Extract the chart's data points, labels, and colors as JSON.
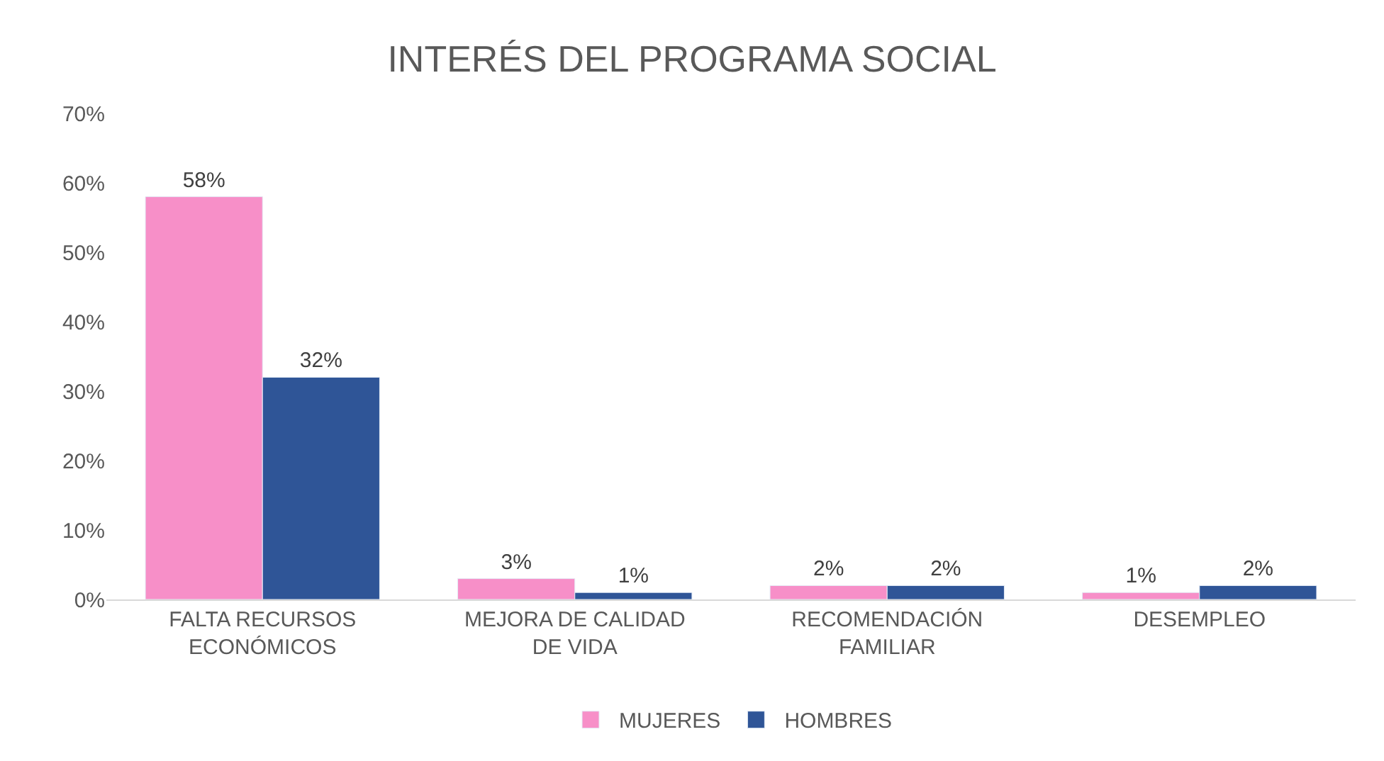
{
  "chart_data": {
    "type": "bar",
    "title": "INTERÉS DEL PROGRAMA SOCIAL",
    "categories": [
      "FALTA RECURSOS ECONÓMICOS",
      "MEJORA DE CALIDAD DE VIDA",
      "RECOMENDACIÓN FAMILIAR",
      "DESEMPLEO"
    ],
    "series": [
      {
        "name": "MUJERES",
        "color": "#f78fc8",
        "values": [
          58,
          3,
          2,
          1
        ],
        "value_labels": [
          "58%",
          "3%",
          "2%",
          "1%"
        ]
      },
      {
        "name": "HOMBRES",
        "color": "#2f5597",
        "values": [
          32,
          1,
          2,
          2
        ],
        "value_labels": [
          "32%",
          "1%",
          "2%",
          "2%"
        ]
      }
    ],
    "ylim": [
      0,
      70
    ],
    "yticks": [
      {
        "value": 0,
        "label": "0%"
      },
      {
        "value": 10,
        "label": "10%"
      },
      {
        "value": 20,
        "label": "20%"
      },
      {
        "value": 30,
        "label": "30%"
      },
      {
        "value": 40,
        "label": "40%"
      },
      {
        "value": 50,
        "label": "50%"
      },
      {
        "value": 60,
        "label": "60%"
      },
      {
        "value": 70,
        "label": "70%"
      }
    ],
    "legend": "bottom",
    "grid": false
  }
}
